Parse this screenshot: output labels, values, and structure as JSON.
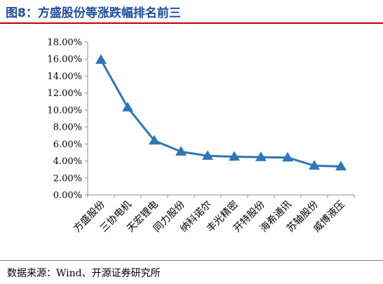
{
  "header": {
    "title": "图8：方盛股份等涨跌幅排名前三"
  },
  "footer": {
    "source": "数据来源：Wind、开源证券研究所"
  },
  "colors": {
    "line": "#2e75b6",
    "marker": "#2e75b6",
    "title": "#1f4e9c",
    "rule": "#c00000"
  },
  "chart_data": {
    "type": "line",
    "title": "图8：方盛股份等涨跌幅排名前三",
    "xlabel": "",
    "ylabel": "",
    "categories": [
      "方盛股份",
      "三协电机",
      "天宏锂电",
      "同力股份",
      "纳科诺尔",
      "丰光精密",
      "开特股份",
      "海希通讯",
      "苏轴股份",
      "威博液压"
    ],
    "series": [
      {
        "values": [
          15.9,
          10.3,
          6.4,
          5.1,
          4.6,
          4.5,
          4.45,
          4.4,
          3.45,
          3.35
        ]
      }
    ],
    "yticks": [
      "0.00%",
      "2.00%",
      "4.00%",
      "6.00%",
      "8.00%",
      "10.00%",
      "12.00%",
      "14.00%",
      "16.00%",
      "18.00%"
    ],
    "ylim": [
      0,
      18
    ],
    "grid": false,
    "legend": "none",
    "marker": "triangle"
  }
}
